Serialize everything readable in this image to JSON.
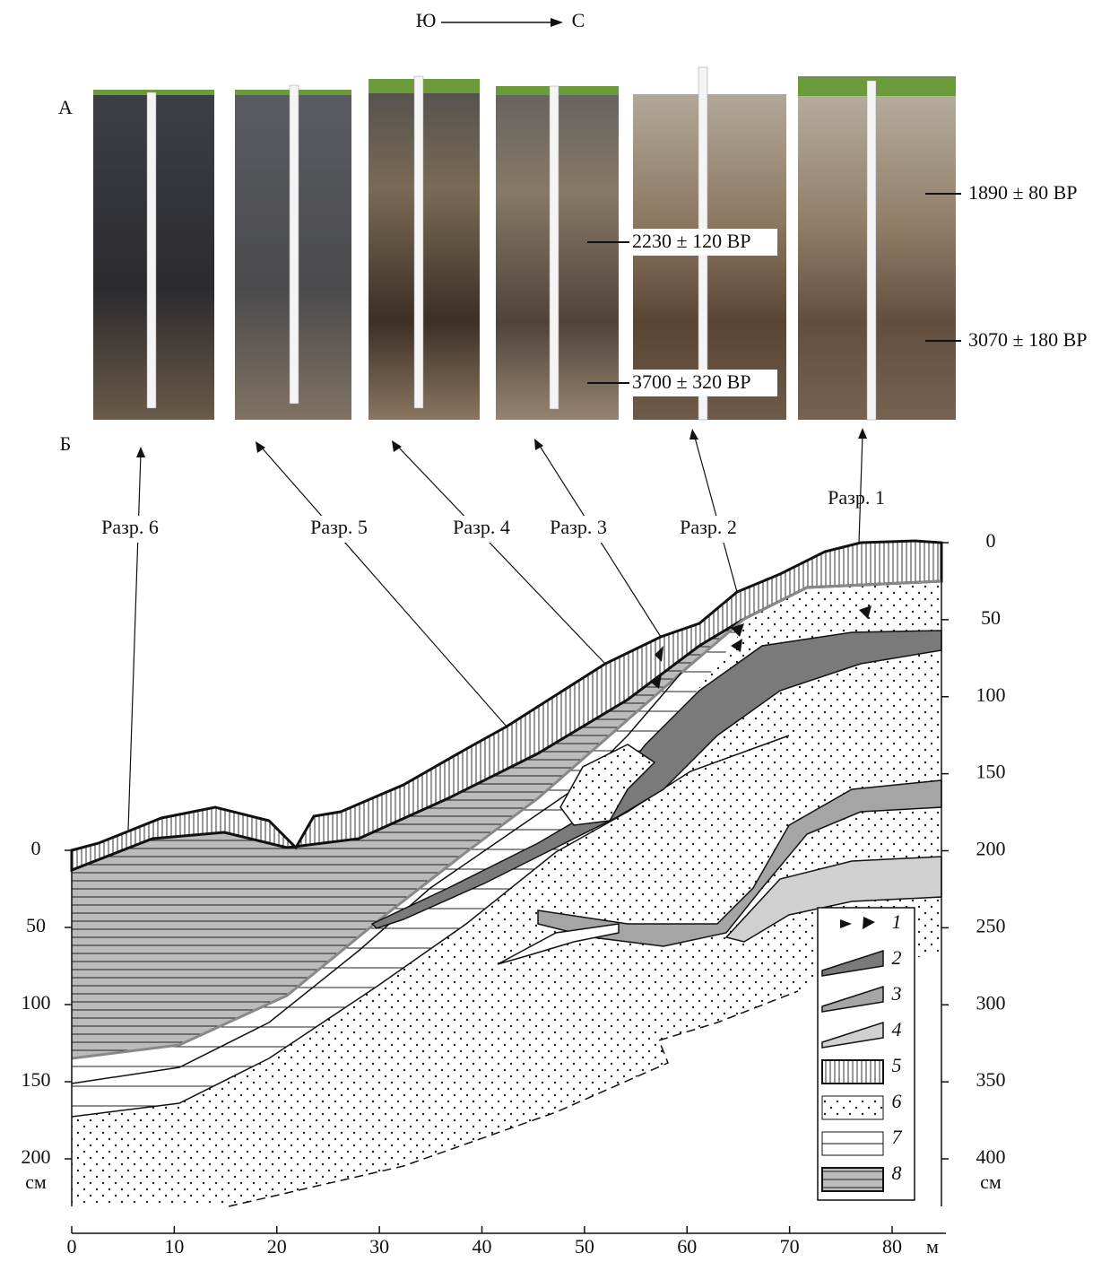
{
  "direction": {
    "from": "Ю",
    "to": "С"
  },
  "panels": {
    "a": "А",
    "b": "Б"
  },
  "dates": [
    "2230 ± 120 BP",
    "3700 ± 320 BP",
    "1890 ± 80 BP",
    "3070 ± 180 BP"
  ],
  "profiles": [
    "Разр. 6",
    "Разр. 5",
    "Разр. 4",
    "Разр. 3",
    "Разр. 2",
    "Разр. 1"
  ],
  "left_axis": {
    "ticks": [
      0,
      50,
      100,
      150,
      200
    ],
    "unit": "см"
  },
  "right_axis": {
    "ticks": [
      0,
      50,
      100,
      150,
      200,
      250,
      300,
      350,
      400
    ],
    "unit": "см"
  },
  "x_axis": {
    "ticks": [
      0,
      10,
      20,
      30,
      40,
      50,
      60,
      70,
      80
    ],
    "unit": "м"
  },
  "legend": [
    "1",
    "2",
    "3",
    "4",
    "5",
    "6",
    "7",
    "8"
  ]
}
